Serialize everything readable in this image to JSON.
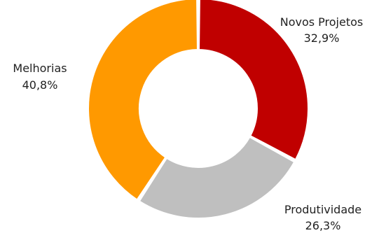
{
  "chart_data": {
    "type": "donut",
    "slices": [
      {
        "label": "Novos Projetos",
        "value_label": "32,9%",
        "value": 32.9,
        "color": "#C00000"
      },
      {
        "label": "Produtividade",
        "value_label": "26,3%",
        "value": 26.3,
        "color": "#BFBFBF"
      },
      {
        "label": "Melhorias",
        "value_label": "40,8%",
        "value": 40.8,
        "color": "#FF9900"
      }
    ],
    "start_angle_deg": 0,
    "direction": "clockwise"
  }
}
